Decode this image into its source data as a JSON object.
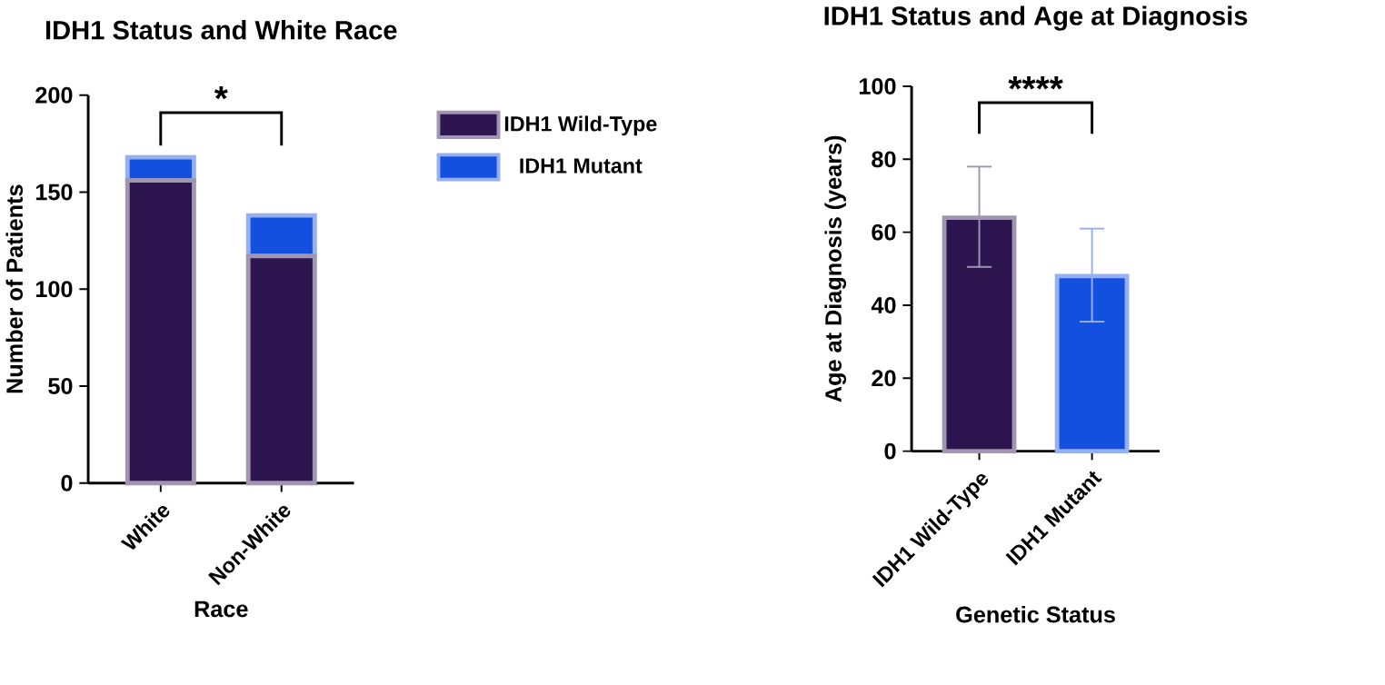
{
  "chart_data": [
    {
      "type": "bar",
      "title": "IDH1 Status and White Race",
      "xlabel": "Race",
      "ylabel": "Number of Patients",
      "categories": [
        "White",
        "Non-White"
      ],
      "stacked": true,
      "series": [
        {
          "name": "IDH1 Wild-Type",
          "color": "#2d1650",
          "values": [
            156,
            117
          ]
        },
        {
          "name": "IDH1 Mutant",
          "color": "#1450e0",
          "values": [
            12,
            21
          ]
        }
      ],
      "ylim": [
        0,
        200
      ],
      "yticks": [
        0,
        50,
        100,
        150,
        200
      ],
      "legend": "right",
      "annotations": [
        "*"
      ]
    },
    {
      "type": "bar",
      "title": "IDH1 Status and Age at Diagnosis",
      "xlabel": "Genetic Status",
      "ylabel": "Age at Diagnosis (years)",
      "categories": [
        "IDH1 Wild-Type",
        "IDH1 Mutant"
      ],
      "values": [
        64,
        48
      ],
      "colors": [
        "#2d1650",
        "#1450e0"
      ],
      "errors": [
        [
          50.5,
          78
        ],
        [
          35.5,
          61
        ]
      ],
      "ylim": [
        0,
        100
      ],
      "yticks": [
        0,
        20,
        40,
        60,
        80,
        100
      ],
      "annotations": [
        "****"
      ]
    }
  ]
}
